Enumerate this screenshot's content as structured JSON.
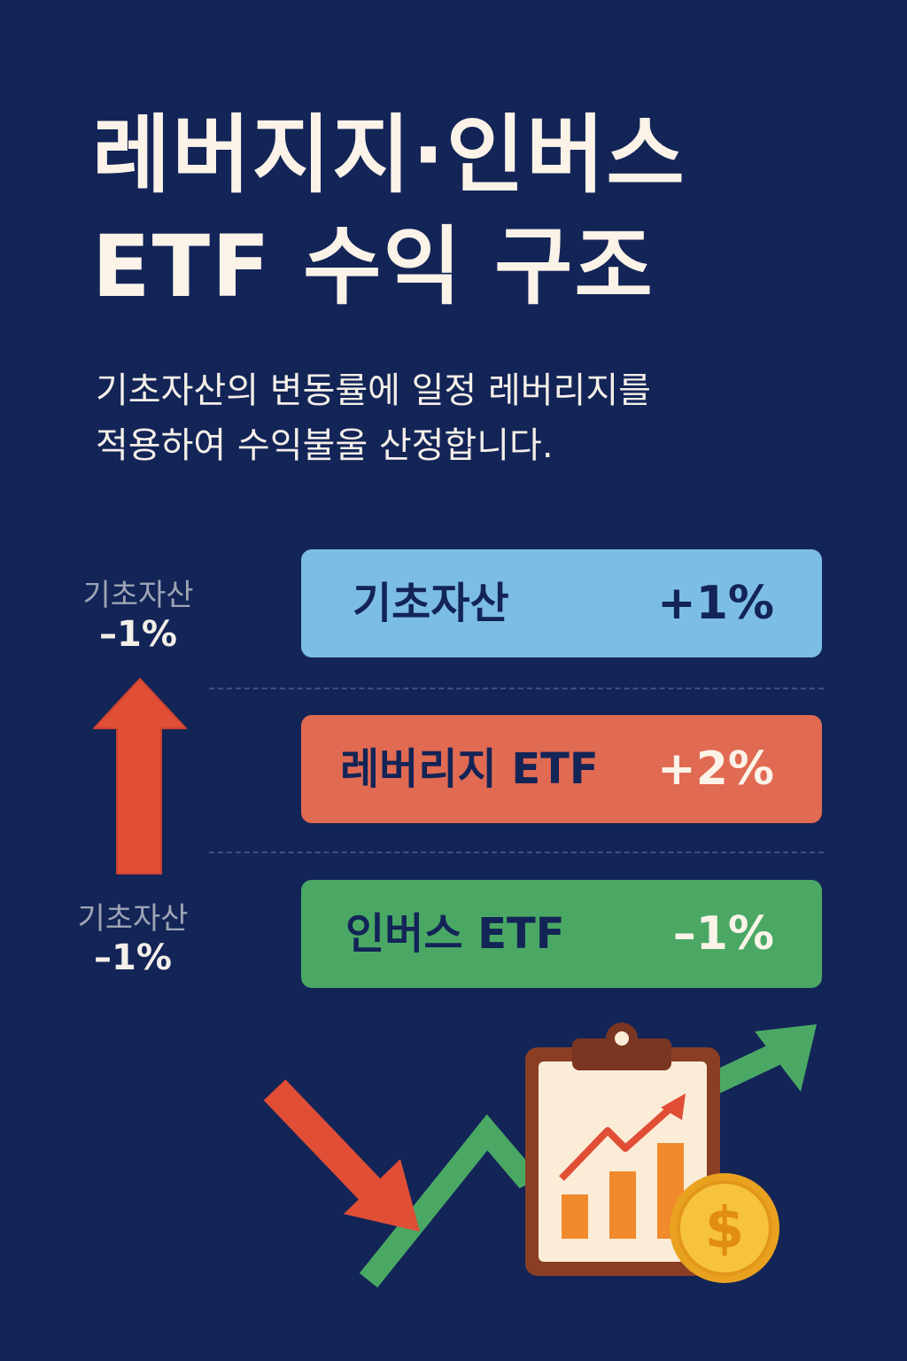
{
  "title": {
    "line1": "레버지지·인버스",
    "line2": "ETF 수익 구조"
  },
  "subtitle": {
    "line1": "기초자산의 변동률에 일정 레버리지를",
    "line2": "적용하여 수익불울 산정합니다."
  },
  "side": {
    "top": {
      "name": "기초자산",
      "value": "–1%"
    },
    "bottom": {
      "name": "기초자산",
      "value": "–1%"
    }
  },
  "bars": [
    {
      "label": "기초자산",
      "value": "+1%",
      "color": "#7cbde5"
    },
    {
      "label": "레버리지 ETF",
      "value": "+2%",
      "color": "#e06a52"
    },
    {
      "label": "인버스 ETF",
      "value": "–1%",
      "color": "#4aa864"
    }
  ],
  "icons": {
    "side_arrow": "up-arrow-icon",
    "illustration": [
      "down-arrow-icon",
      "zigzag-up-arrow-icon",
      "clipboard-chart-icon",
      "dollar-coin-icon"
    ]
  },
  "colors": {
    "background": "#132457",
    "text": "#fbf3e8",
    "red": "#e04e36",
    "green": "#4aa864",
    "blue": "#7cbde5",
    "gold": "#f2b230"
  }
}
